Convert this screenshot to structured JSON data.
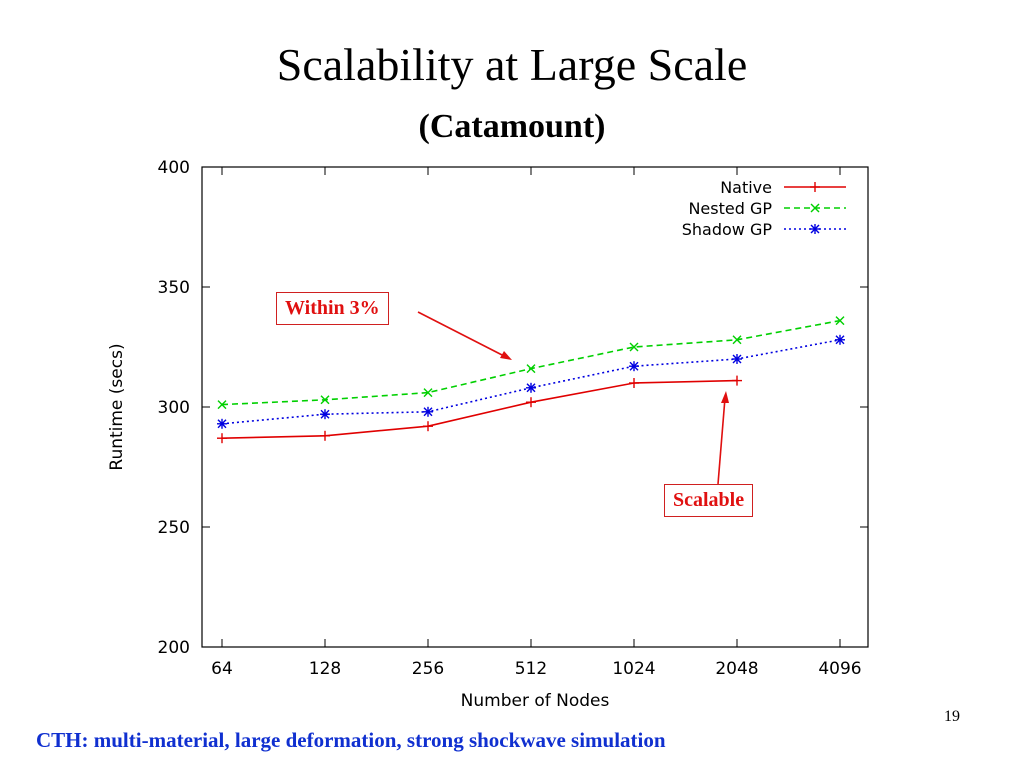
{
  "slide": {
    "title": "Scalability at Large Scale",
    "subtitle": "(Catamount)",
    "footer": "CTH: multi-material, large deformation, strong shockwave simulation",
    "page_number": "19"
  },
  "callouts": {
    "within": "Within 3%",
    "scalable": "Scalable"
  },
  "colors": {
    "native": "#e00000",
    "nested": "#00d000",
    "shadow": "#0000e0",
    "callout": "#e01010",
    "footer": "#1030d0"
  },
  "chart_data": {
    "type": "line",
    "title": "",
    "xlabel": "Number of Nodes",
    "ylabel": "Runtime (secs)",
    "categories": [
      "64",
      "128",
      "256",
      "512",
      "1024",
      "2048",
      "4096"
    ],
    "ylim": [
      200,
      400
    ],
    "yticks": [
      "200",
      "250",
      "300",
      "350",
      "400"
    ],
    "legend_position": "top-right",
    "grid": false,
    "series": [
      {
        "name": "Native",
        "style": "solid",
        "marker": "plus",
        "color": "#e00000",
        "values": [
          287,
          288,
          292,
          302,
          310,
          311,
          null
        ]
      },
      {
        "name": "Nested GP",
        "style": "dashed",
        "marker": "x",
        "color": "#00d000",
        "values": [
          301,
          303,
          306,
          316,
          325,
          328,
          336
        ]
      },
      {
        "name": "Shadow GP",
        "style": "dotted",
        "marker": "star",
        "color": "#0000e0",
        "values": [
          293,
          297,
          298,
          308,
          317,
          320,
          328
        ]
      }
    ]
  }
}
